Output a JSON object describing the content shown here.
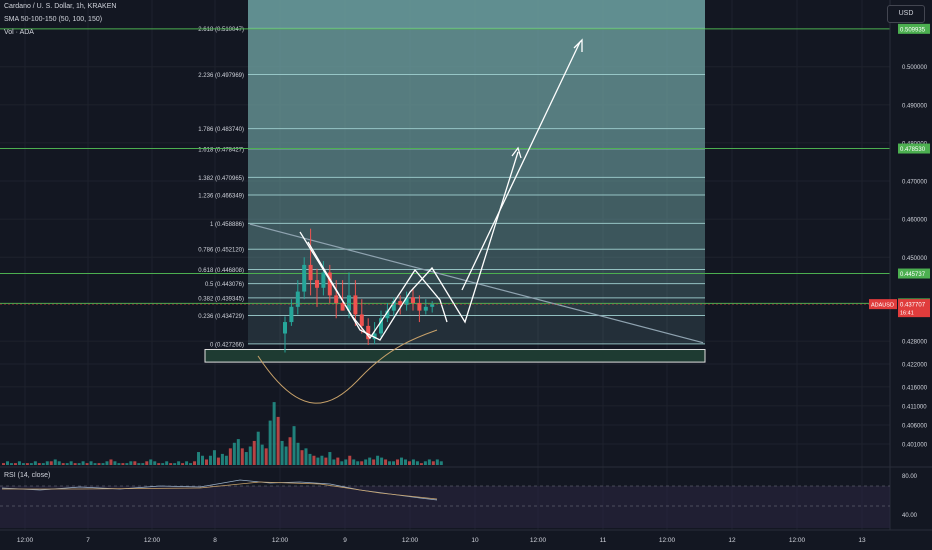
{
  "header": {
    "title": "Cardano / U. S. Dollar, 1h, KRAKEN",
    "sma": "SMA 50-100-150 (50, 100, 150)",
    "vol": "Vol · ADA",
    "currency_button": "USD",
    "rsi_label": "RSI (14, close)"
  },
  "colors": {
    "background": "#131722",
    "grid": "#1e222d",
    "up_candle": "#26a69a",
    "down_candle": "#ef5350",
    "horizontal_line": "#4caf50",
    "fib_line": "#9fcfcf",
    "fib_fill": "#6fa3a3",
    "rsi_line": "#c8a26a",
    "rsi_band": "#2a2540",
    "price_tag_red": "#e03c3c"
  },
  "chart_data": [
    {
      "type": "candlestick",
      "symbol": "ADAUSD",
      "interval": "1h",
      "exchange": "KRAKEN",
      "y_axis": {
        "scale": "linear",
        "ylim": [
          0.3955,
          0.5175
        ],
        "tick_labels": [
          "0.500000",
          "0.490000",
          "0.480000",
          "0.470000",
          "0.460000",
          "0.450000",
          "0.428000",
          "0.422000",
          "0.416000",
          "0.411000",
          "0.406000",
          "0.401000"
        ]
      },
      "x_axis": {
        "tick_labels": [
          "12:00",
          "7",
          "12:00",
          "8",
          "12:00",
          "9",
          "12:00",
          "10",
          "12:00",
          "11",
          "12:00",
          "12",
          "12:00",
          "13"
        ]
      },
      "horizontal_lines": [
        {
          "label": "0.509935",
          "value": 0.509935
        },
        {
          "label": "0.478530",
          "value": 0.47853
        },
        {
          "label": "0.445737",
          "value": 0.445737
        },
        {
          "label": "0.437905",
          "value": 0.437905
        }
      ],
      "current_price": {
        "symbol": "ADAUSD",
        "value": "0.437707",
        "countdown": "16:41"
      },
      "fibonacci": [
        {
          "label": "2.618 (0.510047)",
          "value": 0.510047
        },
        {
          "label": "2.236 (0.497969)",
          "value": 0.497969
        },
        {
          "label": "1.786 (0.483740)",
          "value": 0.48374
        },
        {
          "label": "1.618 (0.478427)",
          "value": 0.478427
        },
        {
          "label": "1.382 (0.470965)",
          "value": 0.470965
        },
        {
          "label": "1.236 (0.466349)",
          "value": 0.466349
        },
        {
          "label": "1 (0.458886)",
          "value": 0.458886
        },
        {
          "label": "0.786 (0.452120)",
          "value": 0.45212
        },
        {
          "label": "0.618 (0.446808)",
          "value": 0.446808
        },
        {
          "label": "0.5 (0.443076)",
          "value": 0.443076
        },
        {
          "label": "0.382 (0.439345)",
          "value": 0.439345
        },
        {
          "label": "0.236 (0.434729)",
          "value": 0.434729
        },
        {
          "label": "0 (0.427266)",
          "value": 0.427266
        }
      ],
      "support_zone": [
        0.4225,
        0.4258
      ],
      "candles": [
        {
          "o": 0.43,
          "c": 0.433,
          "h": 0.4345,
          "l": 0.425
        },
        {
          "o": 0.433,
          "c": 0.437,
          "h": 0.439,
          "l": 0.432
        },
        {
          "o": 0.437,
          "c": 0.441,
          "h": 0.444,
          "l": 0.435
        },
        {
          "o": 0.441,
          "c": 0.448,
          "h": 0.45,
          "l": 0.439
        },
        {
          "o": 0.448,
          "c": 0.444,
          "h": 0.4575,
          "l": 0.44
        },
        {
          "o": 0.444,
          "c": 0.442,
          "h": 0.447,
          "l": 0.437
        },
        {
          "o": 0.442,
          "c": 0.446,
          "h": 0.449,
          "l": 0.44
        },
        {
          "o": 0.446,
          "c": 0.44,
          "h": 0.448,
          "l": 0.438
        },
        {
          "o": 0.44,
          "c": 0.438,
          "h": 0.444,
          "l": 0.434
        },
        {
          "o": 0.438,
          "c": 0.436,
          "h": 0.444,
          "l": 0.436
        },
        {
          "o": 0.436,
          "c": 0.44,
          "h": 0.446,
          "l": 0.434
        },
        {
          "o": 0.44,
          "c": 0.435,
          "h": 0.444,
          "l": 0.432
        },
        {
          "o": 0.435,
          "c": 0.432,
          "h": 0.439,
          "l": 0.43
        },
        {
          "o": 0.432,
          "c": 0.4285,
          "h": 0.434,
          "l": 0.427
        },
        {
          "o": 0.4285,
          "c": 0.43,
          "h": 0.433,
          "l": 0.4272
        },
        {
          "o": 0.43,
          "c": 0.434,
          "h": 0.436,
          "l": 0.429
        },
        {
          "o": 0.434,
          "c": 0.436,
          "h": 0.438,
          "l": 0.433
        },
        {
          "o": 0.436,
          "c": 0.4385,
          "h": 0.4395,
          "l": 0.4345
        },
        {
          "o": 0.4385,
          "c": 0.4375,
          "h": 0.44,
          "l": 0.435
        },
        {
          "o": 0.4375,
          "c": 0.4395,
          "h": 0.441,
          "l": 0.436
        },
        {
          "o": 0.4395,
          "c": 0.438,
          "h": 0.442,
          "l": 0.436
        },
        {
          "o": 0.438,
          "c": 0.436,
          "h": 0.44,
          "l": 0.433
        },
        {
          "o": 0.436,
          "c": 0.437,
          "h": 0.439,
          "l": 0.435
        },
        {
          "o": 0.437,
          "c": 0.4377,
          "h": 0.4385,
          "l": 0.4355
        }
      ],
      "volume_bars": [
        1,
        2,
        1,
        1,
        2,
        1,
        1,
        1,
        2,
        1,
        1,
        2,
        2,
        3,
        2,
        1,
        1,
        2,
        1,
        1,
        2,
        1,
        2,
        1,
        1,
        1,
        2,
        3,
        2,
        1,
        1,
        1,
        2,
        2,
        1,
        1,
        2,
        3,
        2,
        1,
        1,
        2,
        1,
        1,
        2,
        1,
        2,
        1,
        2,
        7,
        5,
        3,
        5,
        8,
        4,
        6,
        5,
        9,
        12,
        14,
        9,
        7,
        10,
        13,
        18,
        11,
        9,
        24,
        34,
        26,
        13,
        10,
        15,
        21,
        12,
        8,
        9,
        6,
        5,
        4,
        5,
        4,
        7,
        3,
        4,
        2,
        3,
        5,
        3,
        2,
        2,
        3,
        4,
        3,
        5,
        4,
        3,
        2,
        2,
        3,
        4,
        3,
        2,
        3,
        2,
        1,
        2,
        3,
        2,
        3,
        2
      ],
      "rsi": {
        "ylim": [
          38,
          85
        ],
        "tick_labels": [
          "80.00",
          "40.00"
        ],
        "band": [
          30,
          70
        ]
      }
    }
  ]
}
